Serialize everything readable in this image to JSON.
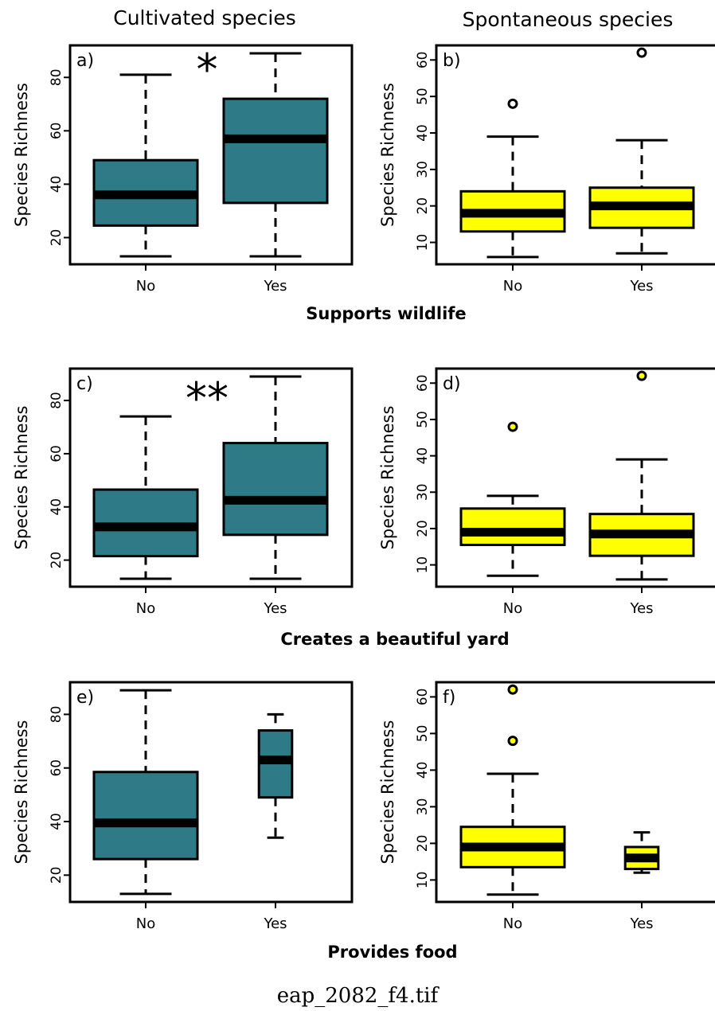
{
  "column_titles": [
    "Cultivated species",
    "Spontaneous species"
  ],
  "row_labels": [
    "Supports wildlife",
    "Creates a beautiful yard",
    "Provides food"
  ],
  "file_name": "eap_2082_f4.tif",
  "colors": {
    "cultivated": "#2e7b87",
    "spontaneous": "#ffff00",
    "outline": "#000000"
  },
  "chart_data": [
    {
      "type": "box",
      "panel": "a)",
      "group": "Cultivated species",
      "row": "Supports wildlife",
      "ylabel": "Species Richness",
      "ylim": [
        10,
        92
      ],
      "yticks": [
        20,
        40,
        60,
        80
      ],
      "categories": [
        "No",
        "Yes"
      ],
      "significance": "*",
      "boxes": [
        {
          "category": "No",
          "min": 13,
          "q1": 24.5,
          "median": 36,
          "q3": 49,
          "max": 81,
          "outliers": []
        },
        {
          "category": "Yes",
          "min": 13,
          "q1": 33,
          "median": 57,
          "q3": 72,
          "max": 89,
          "outliers": []
        }
      ]
    },
    {
      "type": "box",
      "panel": "b)",
      "group": "Spontaneous species",
      "row": "Supports wildlife",
      "ylabel": "Species Richness",
      "ylim": [
        4,
        64
      ],
      "yticks": [
        10,
        20,
        30,
        40,
        50,
        60
      ],
      "categories": [
        "No",
        "Yes"
      ],
      "significance": "",
      "boxes": [
        {
          "category": "No",
          "min": 6,
          "q1": 13,
          "median": 18,
          "q3": 24,
          "max": 39,
          "outliers": [
            48
          ]
        },
        {
          "category": "Yes",
          "min": 7,
          "q1": 14,
          "median": 20,
          "q3": 25,
          "max": 38,
          "outliers": [
            62
          ]
        }
      ]
    },
    {
      "type": "box",
      "panel": "c)",
      "group": "Cultivated species",
      "row": "Creates a beautiful yard",
      "ylabel": "Species Richness",
      "ylim": [
        10,
        92
      ],
      "yticks": [
        20,
        40,
        60,
        80
      ],
      "categories": [
        "No",
        "Yes"
      ],
      "significance": "**",
      "boxes": [
        {
          "category": "No",
          "min": 13,
          "q1": 21.5,
          "median": 32.5,
          "q3": 46.5,
          "max": 74,
          "outliers": []
        },
        {
          "category": "Yes",
          "min": 13,
          "q1": 29.5,
          "median": 42.5,
          "q3": 64,
          "max": 89,
          "outliers": []
        }
      ]
    },
    {
      "type": "box",
      "panel": "d)",
      "group": "Spontaneous species",
      "row": "Creates a beautiful yard",
      "ylabel": "Species Richness",
      "ylim": [
        4,
        64
      ],
      "yticks": [
        10,
        20,
        30,
        40,
        50,
        60
      ],
      "categories": [
        "No",
        "Yes"
      ],
      "significance": "",
      "boxes": [
        {
          "category": "No",
          "min": 7,
          "q1": 15.5,
          "median": 19,
          "q3": 25.5,
          "max": 29,
          "outliers": [
            48
          ]
        },
        {
          "category": "Yes",
          "min": 6,
          "q1": 12.5,
          "median": 18.5,
          "q3": 24,
          "max": 39,
          "outliers": [
            62
          ]
        }
      ]
    },
    {
      "type": "box",
      "panel": "e)",
      "group": "Cultivated species",
      "row": "Provides food",
      "ylabel": "Species Richness",
      "ylim": [
        10,
        92
      ],
      "yticks": [
        20,
        40,
        60,
        80
      ],
      "categories": [
        "No",
        "Yes"
      ],
      "significance": "",
      "boxes": [
        {
          "category": "No",
          "min": 13,
          "q1": 26,
          "median": 39.5,
          "q3": 58.5,
          "max": 89,
          "outliers": [],
          "width": 1
        },
        {
          "category": "Yes",
          "min": 34,
          "q1": 49,
          "median": 63,
          "q3": 74,
          "max": 80,
          "outliers": [],
          "width": 0.32
        }
      ]
    },
    {
      "type": "box",
      "panel": "f)",
      "group": "Spontaneous species",
      "row": "Provides food",
      "ylabel": "Species Richness",
      "ylim": [
        4,
        64
      ],
      "yticks": [
        10,
        20,
        30,
        40,
        50,
        60
      ],
      "categories": [
        "No",
        "Yes"
      ],
      "significance": "",
      "boxes": [
        {
          "category": "No",
          "min": 6,
          "q1": 13.5,
          "median": 19,
          "q3": 24.5,
          "max": 39,
          "outliers": [
            48,
            62
          ],
          "width": 1
        },
        {
          "category": "Yes",
          "min": 12,
          "q1": 13,
          "median": 16,
          "q3": 19,
          "max": 23,
          "outliers": [],
          "width": 0.32
        }
      ]
    }
  ]
}
